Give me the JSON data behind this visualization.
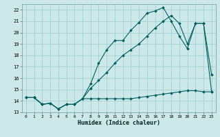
{
  "bg_color": "#cce8e8",
  "grid_color": "#99cccc",
  "line_color": "#005f5f",
  "line1": {
    "x": [
      0,
      1,
      2,
      3,
      4,
      5,
      6,
      7,
      8,
      9,
      10,
      11,
      12,
      13,
      14,
      15,
      16,
      17,
      18,
      19,
      20,
      21,
      22,
      23
    ],
    "y": [
      14.3,
      14.3,
      13.7,
      13.8,
      13.3,
      13.7,
      13.7,
      14.2,
      15.5,
      17.3,
      18.5,
      19.3,
      19.3,
      20.2,
      20.9,
      21.7,
      21.9,
      22.2,
      21.0,
      19.7,
      18.6,
      20.8,
      20.8,
      14.8
    ]
  },
  "line2": {
    "x": [
      0,
      1,
      2,
      3,
      4,
      5,
      6,
      7,
      8,
      9,
      10,
      11,
      12,
      13,
      14,
      15,
      16,
      17,
      18,
      19,
      20,
      21,
      22,
      23
    ],
    "y": [
      14.3,
      14.3,
      13.7,
      13.8,
      13.3,
      13.7,
      13.7,
      14.2,
      15.1,
      15.8,
      16.5,
      17.3,
      18.0,
      18.5,
      19.0,
      19.7,
      20.4,
      21.0,
      21.5,
      20.8,
      19.0,
      20.8,
      20.8,
      16.3
    ]
  },
  "line3": {
    "x": [
      0,
      1,
      2,
      3,
      4,
      5,
      6,
      7,
      8,
      9,
      10,
      11,
      12,
      13,
      14,
      15,
      16,
      17,
      18,
      19,
      20,
      21,
      22,
      23
    ],
    "y": [
      14.3,
      14.3,
      13.7,
      13.8,
      13.3,
      13.7,
      13.7,
      14.2,
      14.2,
      14.2,
      14.2,
      14.2,
      14.2,
      14.2,
      14.3,
      14.4,
      14.5,
      14.6,
      14.7,
      14.8,
      14.9,
      14.9,
      14.8,
      14.8
    ]
  },
  "xlim": [
    -0.5,
    23.5
  ],
  "ylim": [
    13.0,
    22.5
  ],
  "xticks": [
    0,
    1,
    2,
    3,
    4,
    5,
    6,
    7,
    8,
    9,
    10,
    11,
    12,
    13,
    14,
    15,
    16,
    17,
    18,
    19,
    20,
    21,
    22,
    23
  ],
  "yticks": [
    13,
    14,
    15,
    16,
    17,
    18,
    19,
    20,
    21,
    22
  ],
  "xlabel": "Humidex (Indice chaleur)",
  "figsize": [
    3.2,
    2.0
  ],
  "dpi": 100
}
